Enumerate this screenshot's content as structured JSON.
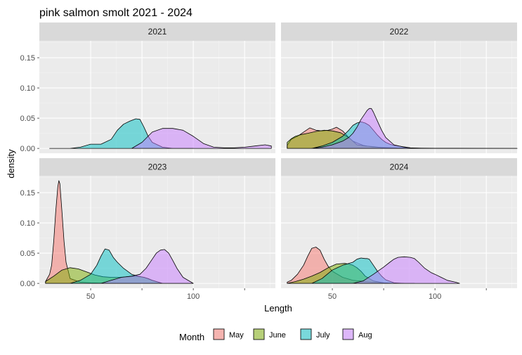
{
  "chart_data": {
    "type": "area",
    "title": "pink salmon smolt 2021 - 2024",
    "xlabel": "Length",
    "ylabel": "density",
    "xlim": [
      25,
      140
    ],
    "ylim": [
      -0.008,
      0.178
    ],
    "x_ticks": [
      50,
      75,
      100,
      125
    ],
    "x_tick_labels": [
      "50",
      "",
      "100",
      ""
    ],
    "y_ticks": [
      0.0,
      0.05,
      0.1,
      0.15
    ],
    "y_tick_labels": [
      "0.00",
      "0.05",
      "0.10",
      "0.15"
    ],
    "grid": true,
    "legend": {
      "title": "Month",
      "position": "bottom",
      "entries": [
        {
          "label": "May",
          "color": "#F8766D"
        },
        {
          "label": "June",
          "color": "#7CAE00"
        },
        {
          "label": "July",
          "color": "#00BFC4"
        },
        {
          "label": "Aug",
          "color": "#C77CFF"
        }
      ]
    },
    "panels": [
      {
        "label": "2021",
        "series": [
          {
            "name": "July",
            "x": [
              30,
              40,
              45,
              50,
              55,
              60,
              63,
              66,
              69,
              72,
              74,
              76,
              78,
              80,
              85,
              90,
              95,
              100
            ],
            "y": [
              0,
              0,
              0.002,
              0.007,
              0.007,
              0.015,
              0.03,
              0.04,
              0.045,
              0.049,
              0.048,
              0.035,
              0.02,
              0.01,
              0.002,
              0,
              0,
              0
            ]
          },
          {
            "name": "Aug",
            "x": [
              70,
              75,
              80,
              85,
              90,
              95,
              100,
              105,
              110,
              115,
              120,
              125,
              130,
              135,
              138
            ],
            "y": [
              0,
              0.01,
              0.027,
              0.033,
              0.033,
              0.03,
              0.02,
              0.008,
              0.002,
              0.001,
              0.001,
              0.002,
              0.004,
              0.006,
              0.004
            ]
          }
        ]
      },
      {
        "label": "2022",
        "series": [
          {
            "name": "May",
            "x": [
              28,
              30,
              33,
              36,
              39,
              42,
              45,
              48,
              50,
              52,
              55,
              58,
              60,
              65,
              70,
              80,
              90,
              100,
              110,
              120,
              140
            ],
            "y": [
              0.005,
              0.015,
              0.02,
              0.027,
              0.034,
              0.03,
              0.029,
              0.03,
              0.032,
              0.035,
              0.029,
              0.018,
              0.012,
              0.005,
              0.002,
              0.001,
              0.0005,
              0.0003,
              0.0002,
              0.0001,
              0
            ]
          },
          {
            "name": "June",
            "x": [
              28,
              30,
              32,
              35,
              38,
              42,
              46,
              50,
              54,
              58,
              60,
              62,
              66,
              70,
              75,
              80,
              85,
              90,
              100,
              110,
              120,
              140
            ],
            "y": [
              0.01,
              0.016,
              0.02,
              0.023,
              0.025,
              0.028,
              0.03,
              0.029,
              0.026,
              0.018,
              0.012,
              0.006,
              0.004,
              0.003,
              0.001,
              0,
              0,
              0,
              0,
              0,
              0,
              0
            ]
          },
          {
            "name": "July",
            "x": [
              40,
              45,
              50,
              55,
              58,
              60,
              62,
              64,
              66,
              68,
              70,
              72,
              74,
              76,
              78,
              80,
              84,
              88,
              95
            ],
            "y": [
              0,
              0.004,
              0.01,
              0.02,
              0.03,
              0.038,
              0.042,
              0.044,
              0.042,
              0.038,
              0.03,
              0.022,
              0.015,
              0.01,
              0.007,
              0.005,
              0.003,
              0.001,
              0
            ]
          },
          {
            "name": "Aug",
            "x": [
              40,
              45,
              50,
              55,
              58,
              60,
              62,
              64,
              66,
              67,
              68,
              69,
              70,
              72,
              74,
              76,
              80,
              85,
              90
            ],
            "y": [
              0,
              0.002,
              0.006,
              0.012,
              0.018,
              0.025,
              0.035,
              0.048,
              0.058,
              0.063,
              0.066,
              0.066,
              0.06,
              0.045,
              0.03,
              0.018,
              0.006,
              0.002,
              0
            ]
          }
        ]
      },
      {
        "label": "2023",
        "series": [
          {
            "name": "May",
            "x": [
              28,
              30,
              31,
              32,
              33,
              34,
              34.5,
              35,
              36,
              37,
              38,
              40,
              45,
              50,
              55,
              60,
              70,
              80,
              90,
              100
            ],
            "y": [
              0.003,
              0.015,
              0.03,
              0.07,
              0.12,
              0.16,
              0.17,
              0.165,
              0.12,
              0.07,
              0.035,
              0.008,
              0.002,
              0.001,
              0.0005,
              0.0002,
              0.0001,
              0,
              0,
              0
            ]
          },
          {
            "name": "June",
            "x": [
              28,
              32,
              36,
              40,
              44,
              48,
              52,
              56,
              60,
              64,
              68,
              72,
              76,
              80,
              85
            ],
            "y": [
              0.003,
              0.012,
              0.022,
              0.026,
              0.024,
              0.019,
              0.014,
              0.011,
              0.01,
              0.01,
              0.011,
              0.012,
              0.01,
              0.005,
              0
            ]
          },
          {
            "name": "July",
            "x": [
              40,
              45,
              50,
              53,
              55,
              57,
              59,
              61,
              63,
              66,
              70,
              73,
              76,
              78,
              80,
              85
            ],
            "y": [
              0,
              0.005,
              0.015,
              0.03,
              0.045,
              0.057,
              0.055,
              0.043,
              0.035,
              0.025,
              0.015,
              0.012,
              0.01,
              0.008,
              0.005,
              0
            ]
          },
          {
            "name": "Aug",
            "x": [
              55,
              60,
              65,
              70,
              74,
              77,
              80,
              82,
              84,
              86,
              88,
              90,
              92,
              95,
              100
            ],
            "y": [
              0,
              0.005,
              0.01,
              0.012,
              0.015,
              0.025,
              0.04,
              0.05,
              0.055,
              0.056,
              0.05,
              0.038,
              0.025,
              0.01,
              0
            ]
          }
        ]
      },
      {
        "label": "2024",
        "series": [
          {
            "name": "May",
            "x": [
              28,
              30,
              33,
              36,
              38,
              40,
              42,
              44,
              46,
              48,
              50,
              55,
              60,
              70,
              80
            ],
            "y": [
              0.002,
              0.005,
              0.015,
              0.03,
              0.045,
              0.058,
              0.06,
              0.055,
              0.04,
              0.028,
              0.02,
              0.01,
              0.005,
              0.002,
              0
            ]
          },
          {
            "name": "June",
            "x": [
              28,
              32,
              36,
              40,
              44,
              48,
              52,
              56,
              58,
              60,
              62,
              64,
              66,
              70,
              75,
              80,
              85,
              90
            ],
            "y": [
              0,
              0.003,
              0.007,
              0.012,
              0.018,
              0.026,
              0.032,
              0.033,
              0.032,
              0.03,
              0.026,
              0.02,
              0.012,
              0.004,
              0.001,
              0,
              0,
              0
            ]
          },
          {
            "name": "July",
            "x": [
              40,
              45,
              50,
              55,
              60,
              62,
              64,
              66,
              67,
              68,
              70,
              72,
              74,
              76,
              80,
              85
            ],
            "y": [
              0,
              0.008,
              0.022,
              0.03,
              0.035,
              0.04,
              0.042,
              0.041,
              0.041,
              0.04,
              0.03,
              0.02,
              0.012,
              0.006,
              0.001,
              0
            ]
          },
          {
            "name": "Aug",
            "x": [
              60,
              65,
              70,
              75,
              78,
              80,
              82,
              85,
              88,
              90,
              92,
              95,
              98,
              100,
              103,
              106,
              110,
              112
            ],
            "y": [
              0,
              0.004,
              0.015,
              0.027,
              0.035,
              0.04,
              0.043,
              0.044,
              0.043,
              0.041,
              0.035,
              0.025,
              0.018,
              0.015,
              0.01,
              0.005,
              0.002,
              0
            ]
          }
        ]
      }
    ]
  }
}
